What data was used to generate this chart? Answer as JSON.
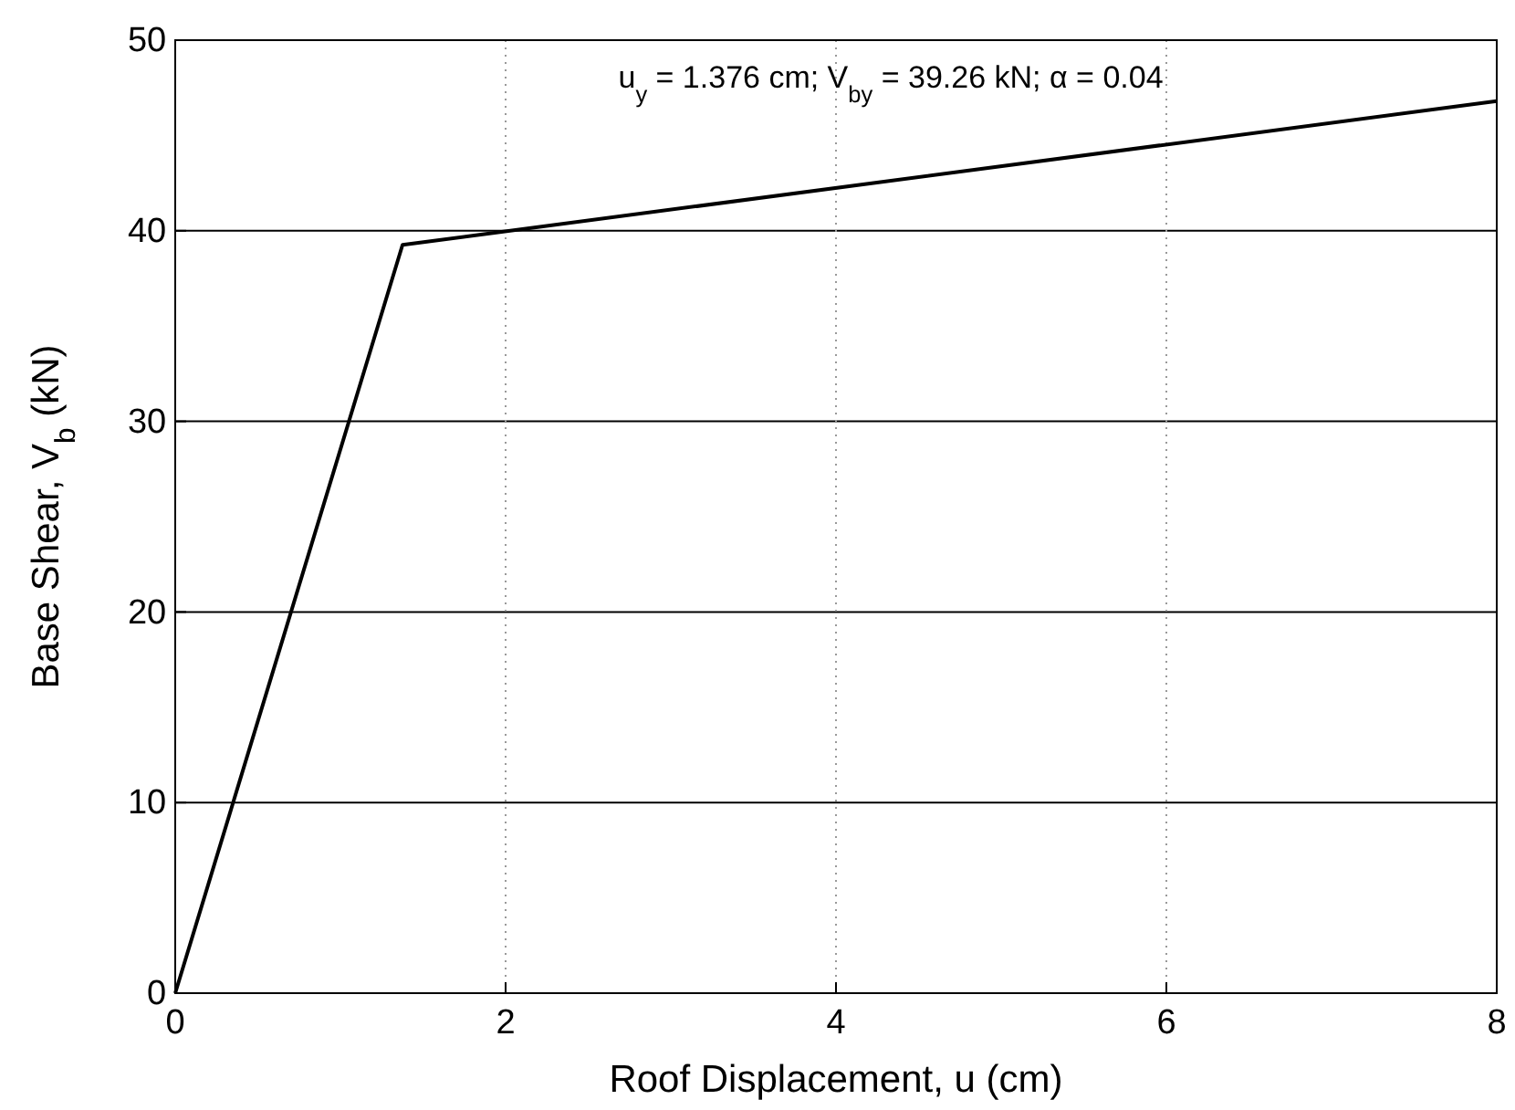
{
  "chart_data": {
    "type": "line",
    "xlabel": "Roof Displacement, u (cm)",
    "ylabel": "Base Shear, V$_{b}$ (kN)",
    "annotations": [
      "u$_{y}$ = 1.376 cm; V$_{by}$ = 39.26 kN; α = 0.04"
    ],
    "x": [
      0,
      1.376,
      8
    ],
    "series": [
      {
        "color": "#000000",
        "values": [
          0,
          39.26,
          46.8
        ]
      }
    ],
    "xlim": [
      0,
      8
    ],
    "xticks": [
      0,
      2,
      4,
      6,
      8
    ],
    "ylim": [
      0,
      50
    ],
    "yticks": [
      0,
      10,
      20,
      30,
      40,
      50
    ],
    "grid": true,
    "marker": "none",
    "line_style": "solid"
  }
}
